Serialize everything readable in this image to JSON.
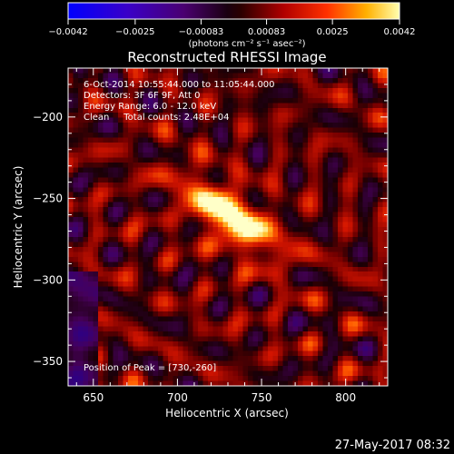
{
  "chart_data": {
    "type": "heatmap",
    "title": "Reconstructed RHESSI Image",
    "xlabel": "Heliocentric X (arcsec)",
    "ylabel": "Heliocentric Y (arcsec)",
    "xlim": [
      635,
      825
    ],
    "ylim": [
      -365,
      -170
    ],
    "x_ticks": [
      {
        "value": 650,
        "label": "650"
      },
      {
        "value": 700,
        "label": "700"
      },
      {
        "value": 750,
        "label": "750"
      },
      {
        "value": 800,
        "label": "800"
      }
    ],
    "y_ticks": [
      {
        "value": -200,
        "label": "−200"
      },
      {
        "value": -250,
        "label": "−250"
      },
      {
        "value": -300,
        "label": "−300"
      },
      {
        "value": -350,
        "label": "−350"
      }
    ],
    "colorbar": {
      "min": -0.0042,
      "max": 0.0042,
      "ticks": [
        {
          "value": -0.0042,
          "label": "−0.0042"
        },
        {
          "value": -0.0025,
          "label": "−0.0025"
        },
        {
          "value": -0.00083,
          "label": "−0.00083"
        },
        {
          "value": 0.00083,
          "label": "0.00083"
        },
        {
          "value": 0.0025,
          "label": "0.0025"
        },
        {
          "value": 0.0042,
          "label": "0.0042"
        }
      ],
      "units": "(photons cm⁻² s⁻¹ asec⁻²)"
    },
    "annotations": {
      "time": "6-Oct-2014 10:55:44.000 to 11:05:44.000",
      "detectors": "Detectors: 3F 6F 9F, Att 0",
      "energy": "Energy Range: 6.0 - 12.0 keV",
      "clean": "Clean     Total counts: 2.48E+04",
      "peak": "Position of Peak = [730,-260]"
    },
    "peak": {
      "x": 730,
      "y": -260
    },
    "footer_date": "27-May-2017 08:32"
  }
}
